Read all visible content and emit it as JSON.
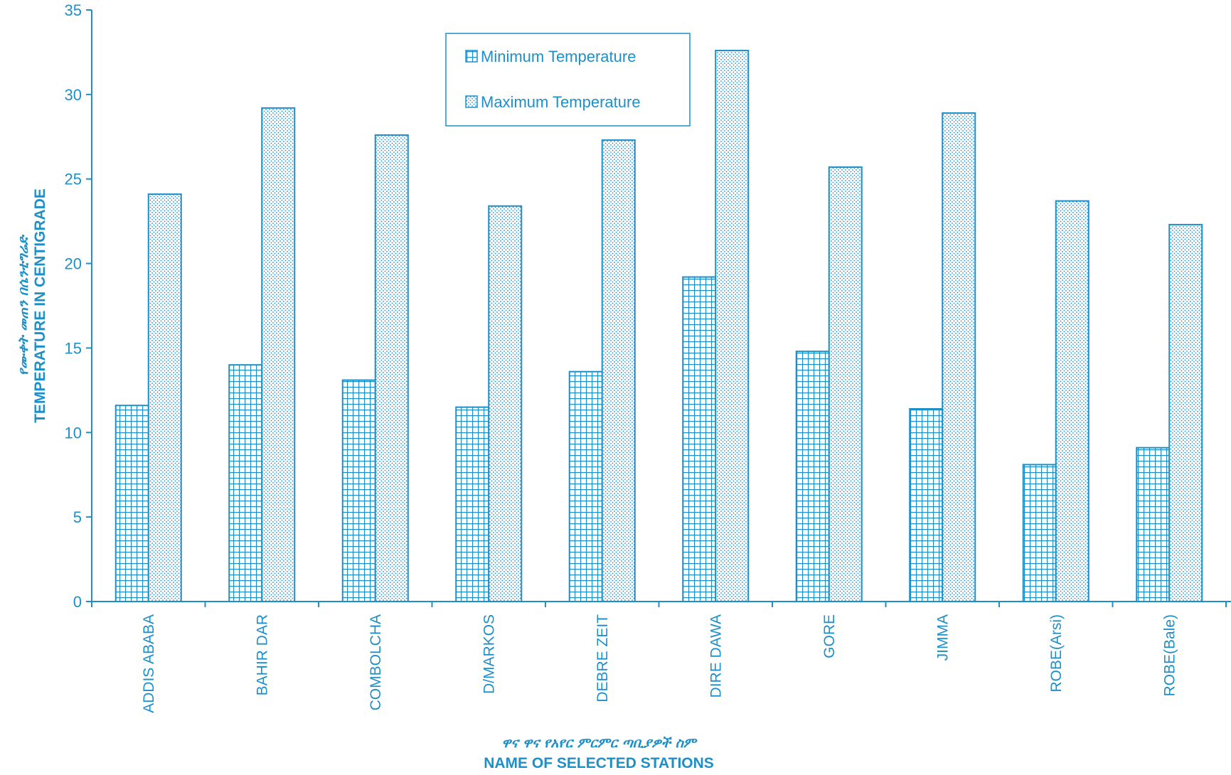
{
  "colors": {
    "accent": "#1f8fc8",
    "background": "#ffffff"
  },
  "chart_data": {
    "type": "bar",
    "title": "",
    "xlabel": "NAME OF SELECTED STATIONS",
    "xlabel_amharic": "ዋና ዋና የአየር ምርምር ጣቢያዎች ስም",
    "ylabel": "TEMPERATURE IN CENTIGRADE",
    "ylabel_amharic": "የሙቀት መጠን በሴንቲግሬድ",
    "ylim": [
      0,
      35
    ],
    "yticks": [
      "0",
      "5",
      "10",
      "15",
      "20",
      "25",
      "30",
      "35"
    ],
    "grid": false,
    "legend_position": "top-center",
    "categories": [
      "ADDIS ABABA",
      "BAHIR DAR",
      "COMBOLCHA",
      "D/MARKOS",
      "DEBRE ZEIT",
      "DIRE  DAWA",
      "GORE",
      "JIMMA",
      "ROBE(Arsi)",
      "ROBE(Bale)"
    ],
    "series": [
      {
        "name": "Minimum Temperature",
        "pattern": "grid",
        "values": [
          11.6,
          14.0,
          13.1,
          11.5,
          13.6,
          19.2,
          14.8,
          11.4,
          8.1,
          9.1
        ]
      },
      {
        "name": "Maximum Temperature",
        "pattern": "dots",
        "values": [
          24.1,
          29.2,
          27.6,
          23.4,
          27.3,
          32.6,
          25.7,
          28.9,
          23.7,
          22.3
        ]
      }
    ]
  }
}
